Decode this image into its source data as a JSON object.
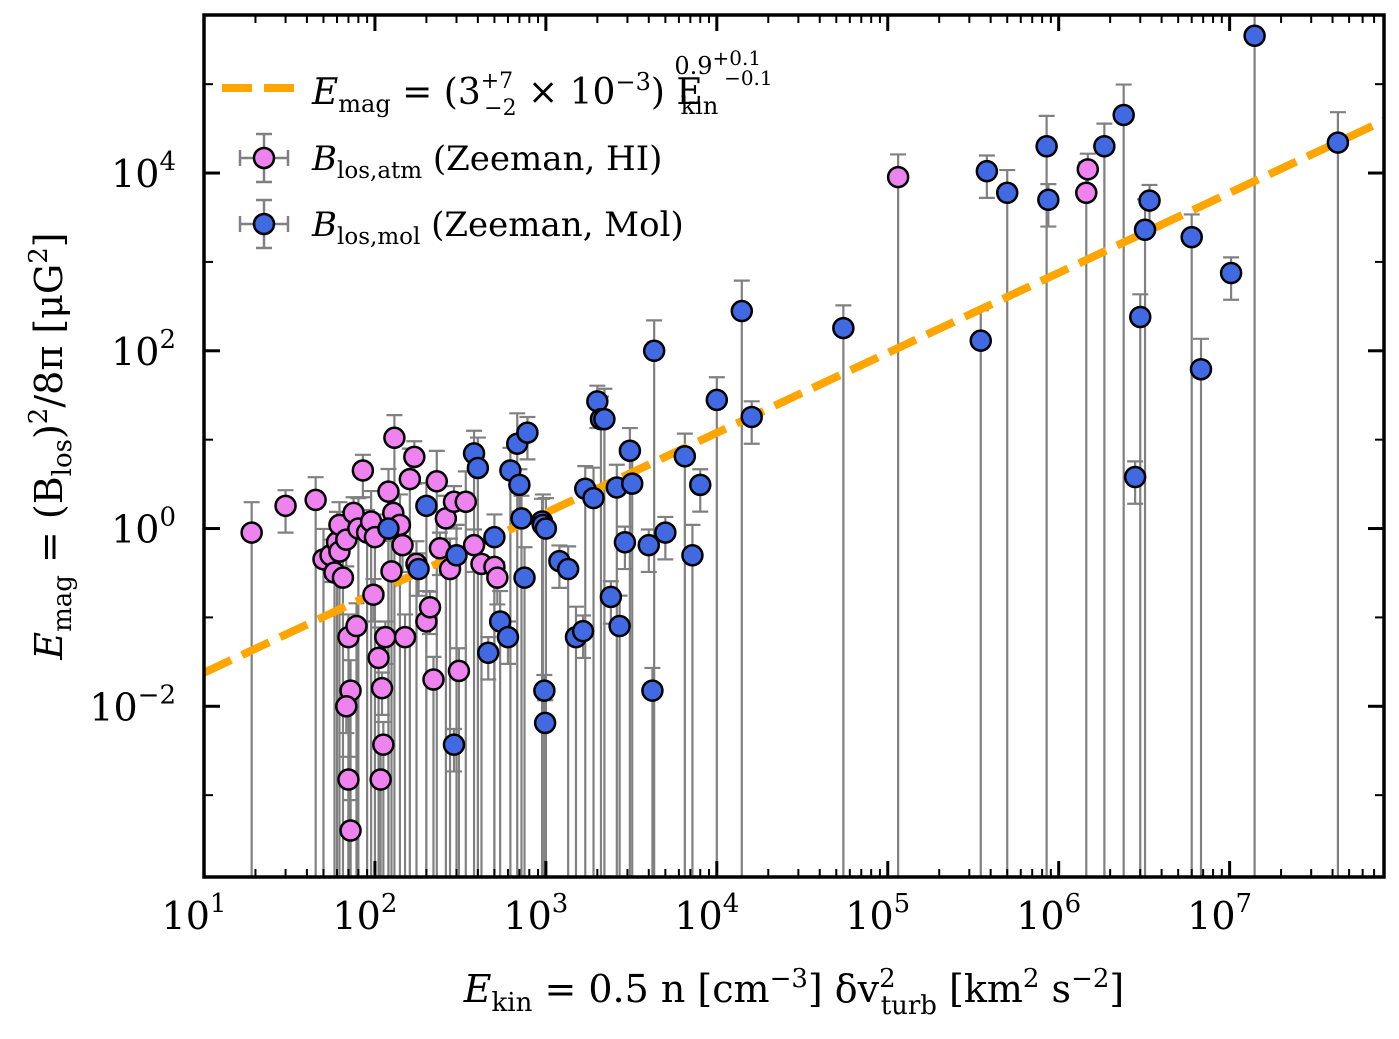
{
  "chart_data": {
    "type": "scatter",
    "xscale": "log",
    "yscale": "log",
    "xlim": [
      10,
      80000000
    ],
    "ylim": [
      0.00012,
      600000
    ],
    "grid": false,
    "legend_position": "top-left",
    "xlabel": {
      "lhs": "E",
      "lhs_sub": "kin",
      "text": " = 0.5 n [cm",
      "e1": "−3",
      "mid": "] δv",
      "sup2": "2",
      "sub2": "turb",
      "tail": " [km",
      "e2": "2",
      "tail2": " s",
      "e3": "−2",
      "end": "]"
    },
    "ylabel": {
      "lhs": "E",
      "lhs_sub": "mag",
      "text": " = (B",
      "sub": "los",
      "mid": ")",
      "sup": "2",
      "tail": "/8π [μG",
      "sup2": "2",
      "end": "]"
    },
    "xticks": [
      {
        "base": "10",
        "exp": "1",
        "value": 10
      },
      {
        "base": "10",
        "exp": "2",
        "value": 100
      },
      {
        "base": "10",
        "exp": "3",
        "value": 1000
      },
      {
        "base": "10",
        "exp": "4",
        "value": 10000
      },
      {
        "base": "10",
        "exp": "5",
        "value": 100000
      },
      {
        "base": "10",
        "exp": "6",
        "value": 1000000
      },
      {
        "base": "10",
        "exp": "7",
        "value": 10000000
      }
    ],
    "yticks": [
      {
        "base": "10",
        "exp": "−2",
        "value": 0.01
      },
      {
        "base": "10",
        "exp": "0",
        "value": 1
      },
      {
        "base": "10",
        "exp": "2",
        "value": 100
      },
      {
        "base": "10",
        "exp": "4",
        "value": 10000
      }
    ],
    "fit_line": {
      "color": "#ffa500",
      "coef": 0.003,
      "exponent": 0.9,
      "x_range": [
        10,
        80000000
      ],
      "label": {
        "lhs": "E",
        "lhs_sub": "mag",
        "eq": " = (3",
        "c_up": "+7",
        "c_dn": "−2",
        "times": " × 10",
        "e": "−3",
        "paren": ") E",
        "kin_sub": "kin",
        "pow": "0.9",
        "p_up": "+0.1",
        "p_dn": "−0.1"
      }
    },
    "series": [
      {
        "name": "HI",
        "label": {
          "sym": "B",
          "sub": "los,atm",
          "text": " (Zeeman, HI)"
        },
        "color": "#ee82ee",
        "points": [
          [
            19,
            0.9
          ],
          [
            30,
            1.8
          ],
          [
            45,
            2.1
          ],
          [
            50,
            0.45
          ],
          [
            55,
            0.5
          ],
          [
            58,
            0.32
          ],
          [
            60,
            0.7
          ],
          [
            62,
            0.55
          ],
          [
            62,
            1.1
          ],
          [
            65,
            0.28
          ],
          [
            68,
            0.75
          ],
          [
            70,
            0.06
          ],
          [
            72,
            0.015
          ],
          [
            68,
            0.01
          ],
          [
            70,
            0.0015
          ],
          [
            72,
            0.0004
          ],
          [
            75,
            1.5
          ],
          [
            78,
            0.08
          ],
          [
            80,
            1.0
          ],
          [
            85,
            4.5
          ],
          [
            90,
            0.9
          ],
          [
            95,
            1.2
          ],
          [
            98,
            0.18
          ],
          [
            100,
            0.8
          ],
          [
            105,
            0.035
          ],
          [
            110,
            0.016
          ],
          [
            112,
            0.0037
          ],
          [
            108,
            0.0015
          ],
          [
            115,
            0.06
          ],
          [
            120,
            2.6
          ],
          [
            125,
            0.33
          ],
          [
            128,
            1.5
          ],
          [
            130,
            10.5
          ],
          [
            140,
            1.1
          ],
          [
            145,
            0.65
          ],
          [
            150,
            0.06
          ],
          [
            160,
            3.6
          ],
          [
            170,
            6.4
          ],
          [
            175,
            0.4
          ],
          [
            200,
            0.09
          ],
          [
            210,
            0.13
          ],
          [
            220,
            0.02
          ],
          [
            230,
            3.4
          ],
          [
            240,
            0.6
          ],
          [
            260,
            1.3
          ],
          [
            275,
            0.35
          ],
          [
            290,
            2.0
          ],
          [
            310,
            0.025
          ],
          [
            340,
            2.0
          ],
          [
            380,
            0.65
          ],
          [
            420,
            0.4
          ],
          [
            500,
            0.37
          ],
          [
            520,
            0.28
          ],
          [
            115000,
            9000
          ],
          [
            1450000,
            6000
          ],
          [
            1480000,
            11000
          ]
        ]
      },
      {
        "name": "Mol",
        "label": {
          "sym": "B",
          "sub": "los,mol",
          "text": " (Zeeman, Mol)"
        },
        "color": "#4169e1",
        "points": [
          [
            120,
            1.0
          ],
          [
            180,
            0.35
          ],
          [
            200,
            1.8
          ],
          [
            300,
            0.5
          ],
          [
            290,
            0.0037
          ],
          [
            380,
            7.0
          ],
          [
            400,
            4.8
          ],
          [
            460,
            0.04
          ],
          [
            500,
            0.8
          ],
          [
            540,
            0.09
          ],
          [
            600,
            0.06
          ],
          [
            620,
            4.5
          ],
          [
            680,
            9.0
          ],
          [
            700,
            3.1
          ],
          [
            720,
            1.3
          ],
          [
            750,
            0.28
          ],
          [
            780,
            12.0
          ],
          [
            950,
            1.2
          ],
          [
            960,
            1.1
          ],
          [
            980,
            0.015
          ],
          [
            990,
            0.0065
          ],
          [
            1000,
            1.0
          ],
          [
            1200,
            0.43
          ],
          [
            1350,
            0.35
          ],
          [
            1500,
            0.06
          ],
          [
            1650,
            0.07
          ],
          [
            1700,
            2.8
          ],
          [
            1900,
            2.2
          ],
          [
            2000,
            27.0
          ],
          [
            2100,
            17.0
          ],
          [
            2200,
            17.0
          ],
          [
            2400,
            0.17
          ],
          [
            2600,
            2.9
          ],
          [
            2700,
            0.08
          ],
          [
            2900,
            0.7
          ],
          [
            3100,
            7.5
          ],
          [
            3200,
            3.2
          ],
          [
            4000,
            0.65
          ],
          [
            4200,
            0.015
          ],
          [
            4300,
            100.0
          ],
          [
            5000,
            0.9
          ],
          [
            6500,
            6.5
          ],
          [
            7200,
            0.5
          ],
          [
            8000,
            3.1
          ],
          [
            10000,
            28.0
          ],
          [
            14000,
            280.0
          ],
          [
            16000,
            18.0
          ],
          [
            55000,
            180.0
          ],
          [
            350000,
            130.0
          ],
          [
            380000,
            10500
          ],
          [
            500000,
            6000
          ],
          [
            850000,
            20000
          ],
          [
            870000,
            5000
          ],
          [
            1850000,
            20000
          ],
          [
            2400000,
            45000
          ],
          [
            2800000,
            3.8
          ],
          [
            3000000,
            240
          ],
          [
            3200000,
            2300
          ],
          [
            3400000,
            4900
          ],
          [
            6000000,
            1900
          ],
          [
            6800000,
            62
          ],
          [
            10200000,
            750
          ],
          [
            14000000,
            350000
          ],
          [
            43000000,
            22000
          ]
        ]
      }
    ]
  }
}
